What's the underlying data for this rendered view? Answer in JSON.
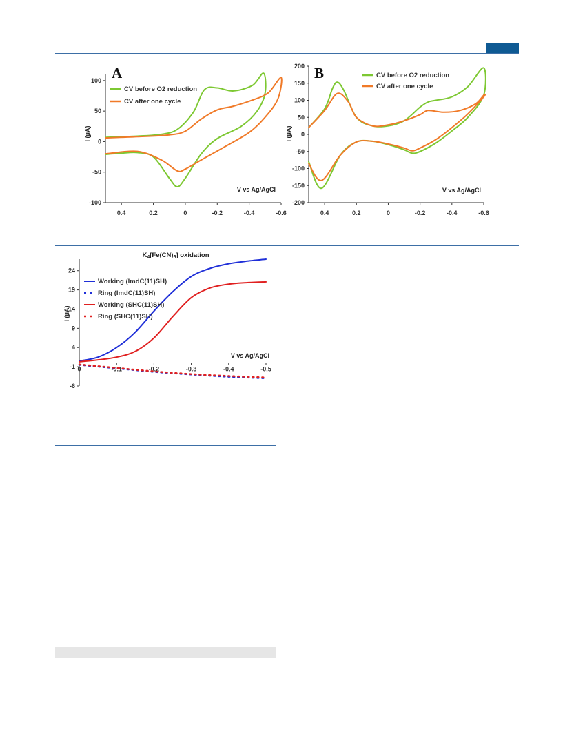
{
  "page": {
    "colors": {
      "rule": "#3d6fa6",
      "tab": "#0f5a93",
      "band": "#e6e6e6",
      "green": "#7dc832",
      "orange": "#f07a28",
      "blue": "#1f2fd8",
      "red": "#e02020"
    }
  },
  "chart_data": [
    {
      "type": "line",
      "panel_label": "A",
      "xlabel": "V vs Ag/AgCl",
      "ylabel": "I (μA)",
      "xlim": [
        0.5,
        -0.6
      ],
      "ylim": [
        -100,
        110
      ],
      "x_ticks": [
        "0.4",
        "0.2",
        "0",
        "-0.2",
        "-0.4",
        "-0.6"
      ],
      "y_ticks": [
        "100",
        "50",
        "0",
        "-50",
        "-100"
      ],
      "legend_position": "top-left",
      "series": [
        {
          "name": "CV before O2 reduction",
          "color": "#7dc832",
          "x": [
            0.5,
            0.3,
            0.15,
            0.05,
            -0.05,
            -0.12,
            -0.2,
            -0.3,
            -0.42,
            -0.49,
            -0.5,
            -0.45,
            -0.35,
            -0.2,
            -0.1,
            0.0,
            0.05,
            0.1,
            0.2,
            0.3,
            0.4,
            0.5
          ],
          "y": [
            7,
            9,
            12,
            20,
            48,
            85,
            88,
            83,
            92,
            112,
            80,
            50,
            25,
            5,
            -20,
            -60,
            -74,
            -60,
            -25,
            -18,
            -19,
            -21
          ]
        },
        {
          "name": "CV after one cycle",
          "color": "#f07a28",
          "x": [
            0.5,
            0.3,
            0.1,
            0.0,
            -0.1,
            -0.2,
            -0.3,
            -0.42,
            -0.52,
            -0.6,
            -0.58,
            -0.5,
            -0.4,
            -0.25,
            -0.1,
            0.0,
            0.05,
            0.15,
            0.3,
            0.5
          ],
          "y": [
            6,
            8,
            11,
            17,
            37,
            52,
            58,
            68,
            80,
            105,
            70,
            40,
            15,
            -8,
            -30,
            -45,
            -48,
            -30,
            -16,
            -20
          ]
        }
      ]
    },
    {
      "type": "line",
      "panel_label": "B",
      "xlabel": "V vs Ag/AgCl",
      "ylabel": "I (μA)",
      "xlim": [
        0.5,
        -0.6
      ],
      "ylim": [
        -200,
        200
      ],
      "x_ticks": [
        "0.4",
        "0.2",
        "0",
        "-0.2",
        "-0.4",
        "-0.6"
      ],
      "y_ticks": [
        "200",
        "150",
        "100",
        "50",
        "0",
        "-50",
        "-100",
        "-150",
        "-200"
      ],
      "legend_position": "top-center",
      "series": [
        {
          "name": "CV before O2 reduction",
          "color": "#7dc832",
          "x": [
            0.5,
            0.4,
            0.35,
            0.32,
            0.28,
            0.2,
            0.1,
            0.0,
            -0.1,
            -0.2,
            -0.25,
            -0.3,
            -0.4,
            -0.5,
            -0.6,
            -0.6,
            -0.5,
            -0.4,
            -0.3,
            -0.2,
            -0.15,
            -0.1,
            0.0,
            0.1,
            0.2,
            0.3,
            0.42,
            0.5
          ],
          "y": [
            20,
            75,
            135,
            153,
            130,
            50,
            25,
            25,
            40,
            80,
            95,
            100,
            110,
            140,
            195,
            115,
            50,
            10,
            -25,
            -50,
            -55,
            -45,
            -30,
            -20,
            -22,
            -60,
            -158,
            -80
          ]
        },
        {
          "name": "CV after one cycle",
          "color": "#f07a28",
          "x": [
            0.5,
            0.4,
            0.32,
            0.25,
            0.2,
            0.1,
            0.0,
            -0.1,
            -0.2,
            -0.25,
            -0.35,
            -0.45,
            -0.55,
            -0.6,
            -0.6,
            -0.5,
            -0.4,
            -0.3,
            -0.2,
            -0.15,
            -0.1,
            0.0,
            0.1,
            0.2,
            0.3,
            0.42,
            0.5
          ],
          "y": [
            20,
            70,
            120,
            95,
            50,
            25,
            28,
            40,
            58,
            70,
            65,
            70,
            90,
            115,
            110,
            60,
            20,
            -15,
            -40,
            -48,
            -40,
            -28,
            -20,
            -22,
            -60,
            -135,
            -85
          ]
        }
      ]
    },
    {
      "type": "line",
      "title": "K4[Fe(CN)6] oxidation",
      "title_main": "K",
      "title_sub1": "4",
      "title_mid": "[Fe(CN)",
      "title_sub2": "6",
      "title_end": "] oxidation",
      "xlabel": "V vs Ag/AgCl",
      "ylabel": "I (μA)",
      "xlim": [
        0,
        -0.5
      ],
      "ylim": [
        -6,
        27
      ],
      "x_ticks": [
        "0",
        "-0.1",
        "-0.2",
        "-0.3",
        "-0.4",
        "-0.5"
      ],
      "y_ticks": [
        "24",
        "19",
        "14",
        "9",
        "4",
        "-1",
        "-6"
      ],
      "legend_position": "top-left",
      "series": [
        {
          "name": "Working (ImdC(11)SH)",
          "color": "#1f2fd8",
          "dash": false,
          "x": [
            0,
            -0.05,
            -0.1,
            -0.15,
            -0.2,
            -0.25,
            -0.3,
            -0.35,
            -0.4,
            -0.45,
            -0.5
          ],
          "y": [
            0.5,
            1.5,
            4,
            8,
            13.5,
            18.5,
            22.5,
            24.6,
            25.8,
            26.5,
            27
          ]
        },
        {
          "name": "Ring (ImdC(11)SH)",
          "color": "#1f2fd8",
          "dash": true,
          "x": [
            0,
            -0.1,
            -0.2,
            -0.3,
            -0.4,
            -0.5
          ],
          "y": [
            -0.5,
            -1.4,
            -2.3,
            -3.0,
            -3.6,
            -4.0
          ]
        },
        {
          "name": "Working (SHC(11)SH)",
          "color": "#e02020",
          "dash": false,
          "x": [
            0,
            -0.05,
            -0.1,
            -0.15,
            -0.2,
            -0.25,
            -0.3,
            -0.35,
            -0.4,
            -0.45,
            -0.5
          ],
          "y": [
            0.3,
            0.8,
            1.5,
            3,
            6.5,
            12,
            17,
            19.5,
            20.5,
            20.9,
            21.1
          ]
        },
        {
          "name": "Ring (SHC(11)SH)",
          "color": "#e02020",
          "dash": true,
          "x": [
            0,
            -0.1,
            -0.2,
            -0.3,
            -0.4,
            -0.5
          ],
          "y": [
            -0.4,
            -1.3,
            -2.2,
            -2.9,
            -3.4,
            -3.8
          ]
        }
      ]
    }
  ]
}
